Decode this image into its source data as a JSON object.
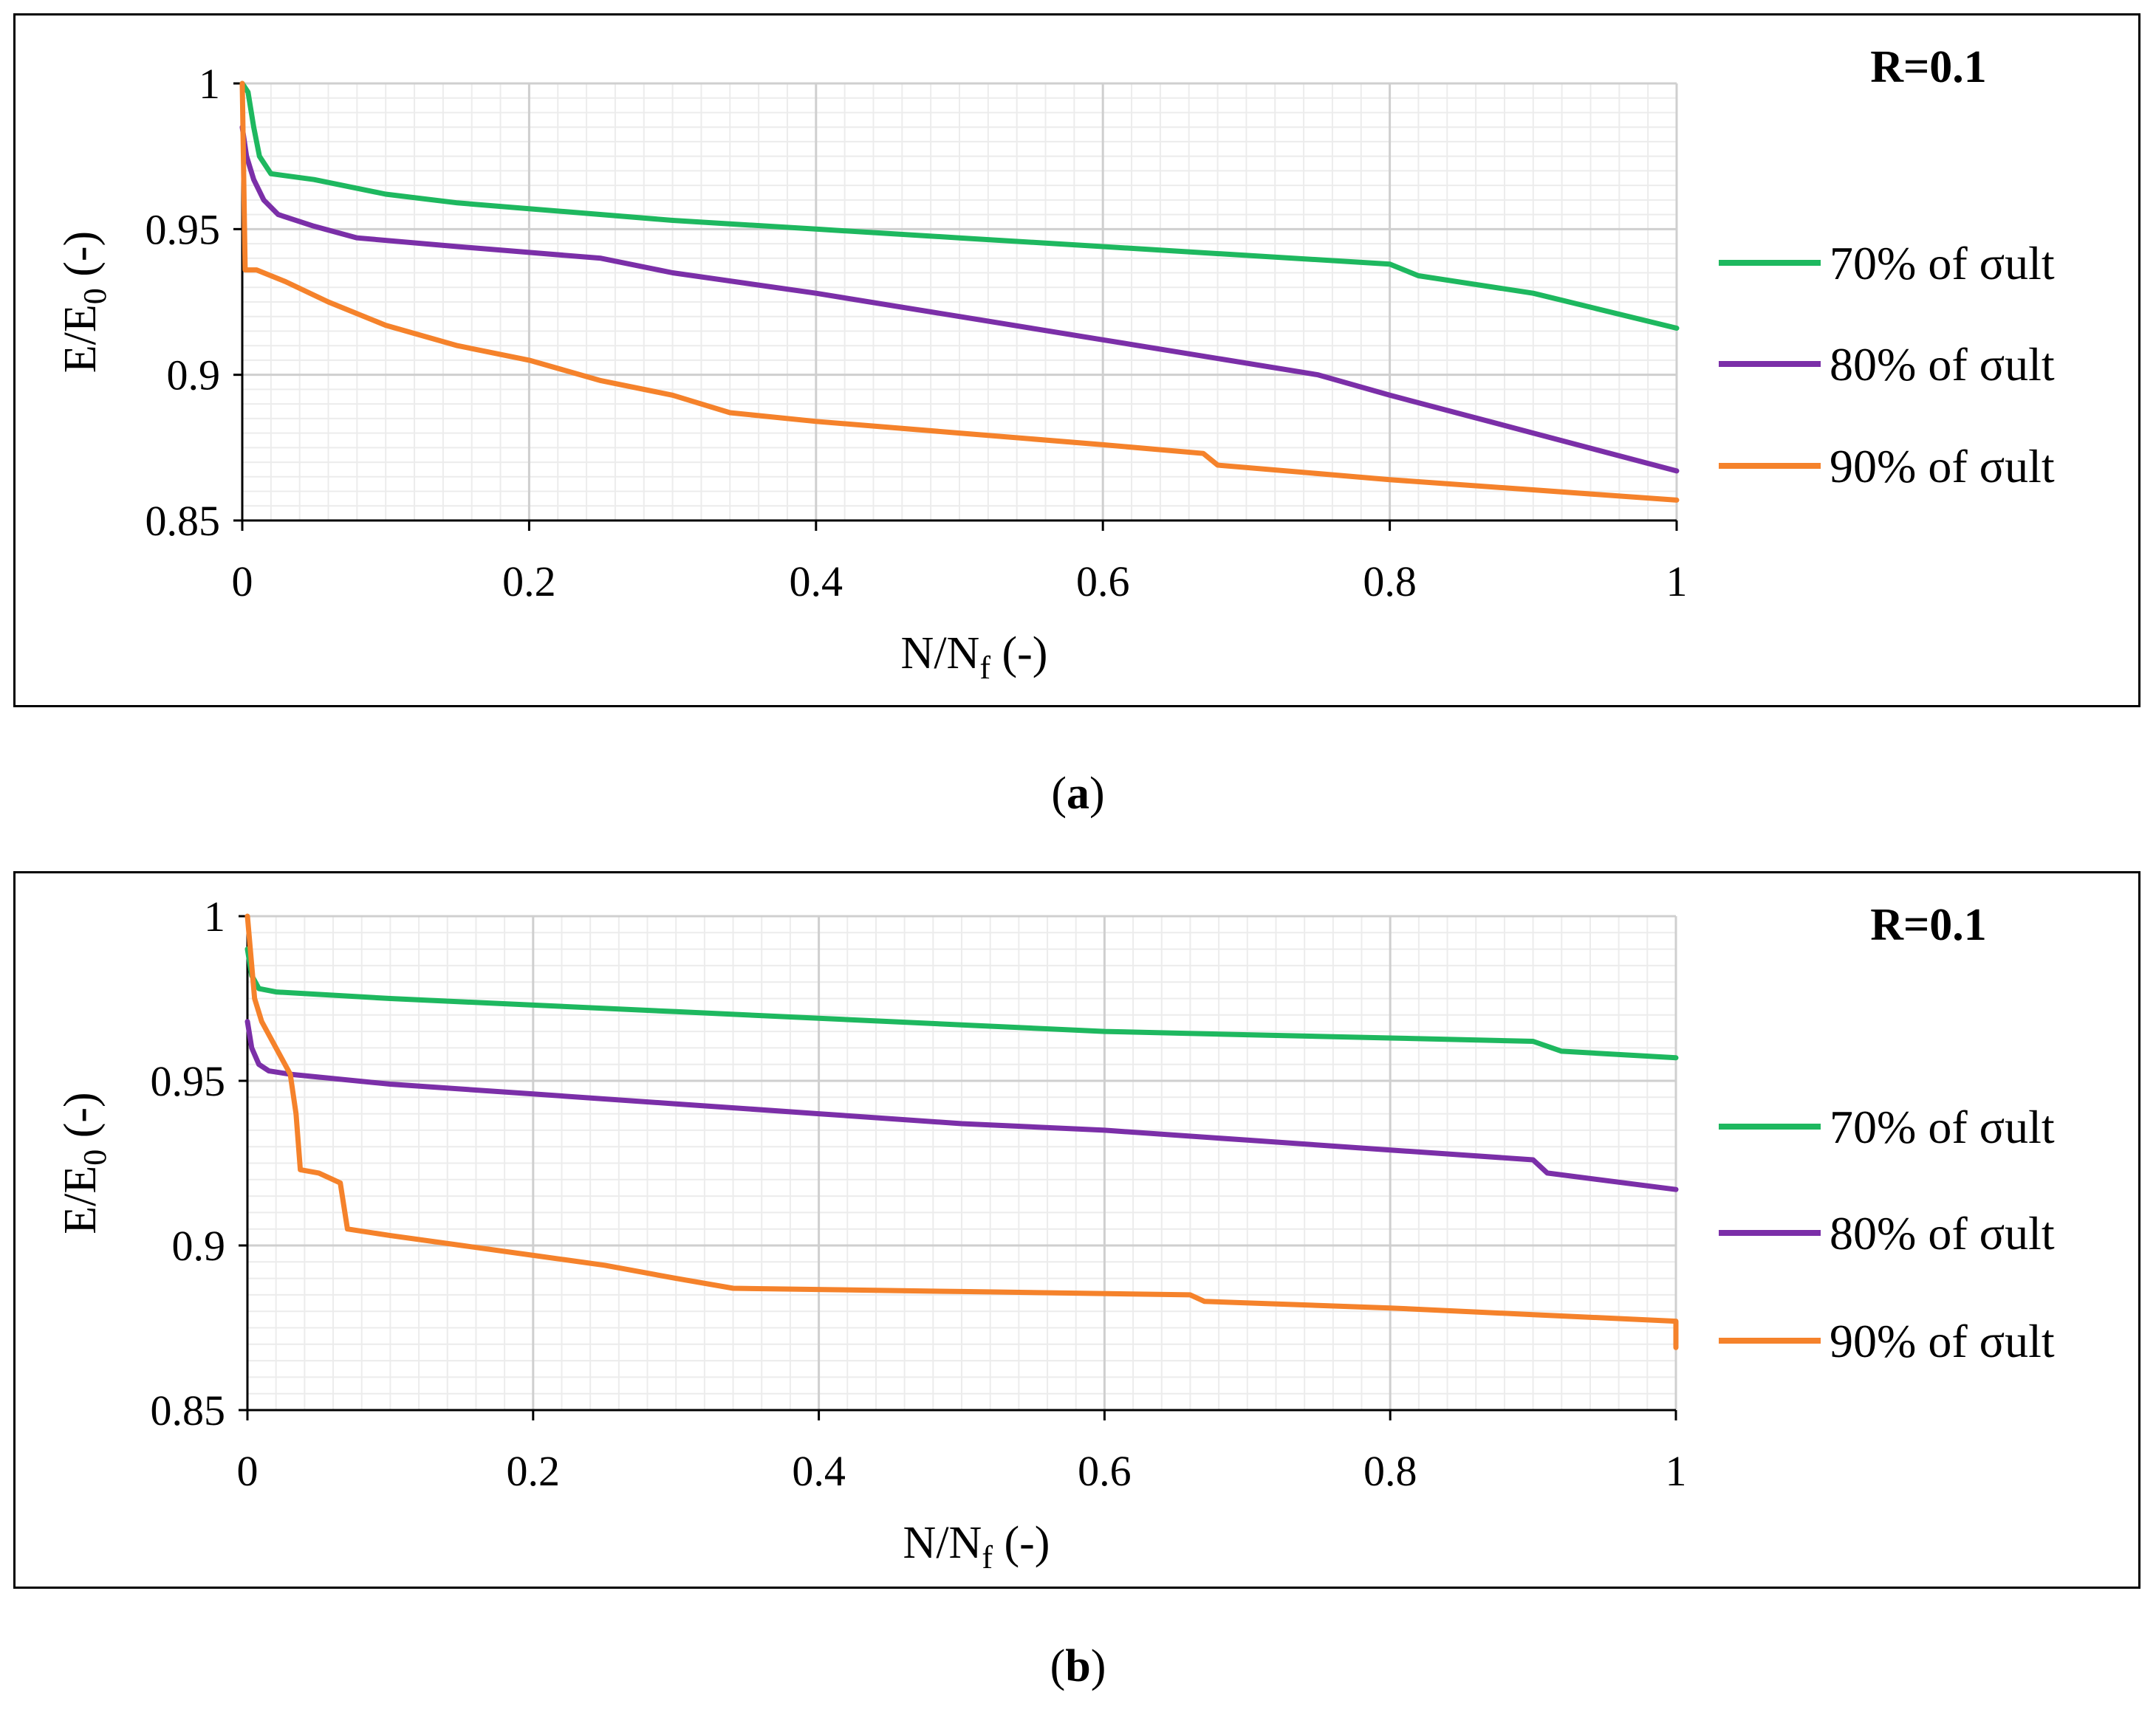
{
  "chart_data": [
    {
      "panel": "a",
      "type": "line",
      "caption": "a",
      "annotation": "R=0.1",
      "xlabel": "N/N",
      "xlabel_sub": "f",
      "xlabel_suffix": " (-)",
      "ylabel": "E/E",
      "ylabel_sub": "0",
      "ylabel_suffix": " (-)",
      "xlim": [
        0,
        1
      ],
      "ylim": [
        0.85,
        1
      ],
      "xticks": [
        "0",
        "0.2",
        "0.4",
        "0.6",
        "0.8",
        "1"
      ],
      "yticks": [
        "0.85",
        "0.9",
        "0.95",
        "1"
      ],
      "grid": true,
      "legend_position": "right",
      "series": [
        {
          "name": "70% of σult",
          "color": "#1eb85f",
          "x": [
            0,
            0.004,
            0.008,
            0.012,
            0.02,
            0.05,
            0.1,
            0.15,
            0.2,
            0.3,
            0.4,
            0.5,
            0.6,
            0.7,
            0.8,
            0.82,
            0.9,
            1.0
          ],
          "y": [
            1.0,
            0.997,
            0.985,
            0.975,
            0.969,
            0.967,
            0.962,
            0.959,
            0.957,
            0.953,
            0.95,
            0.947,
            0.944,
            0.941,
            0.938,
            0.934,
            0.928,
            0.916
          ]
        },
        {
          "name": "80% of σult",
          "color": "#7b2fa8",
          "x": [
            0,
            0.003,
            0.008,
            0.015,
            0.025,
            0.05,
            0.08,
            0.15,
            0.2,
            0.25,
            0.3,
            0.4,
            0.5,
            0.6,
            0.75,
            0.8,
            0.9,
            1.0
          ],
          "y": [
            0.985,
            0.975,
            0.967,
            0.96,
            0.955,
            0.951,
            0.947,
            0.944,
            0.942,
            0.94,
            0.935,
            0.928,
            0.92,
            0.912,
            0.9,
            0.893,
            0.88,
            0.867
          ]
        },
        {
          "name": "90% of σult",
          "color": "#f5822b",
          "x": [
            0,
            0.002,
            0.01,
            0.03,
            0.06,
            0.1,
            0.15,
            0.2,
            0.25,
            0.3,
            0.34,
            0.4,
            0.5,
            0.6,
            0.67,
            0.68,
            0.8,
            1.0
          ],
          "y": [
            1.0,
            0.936,
            0.936,
            0.932,
            0.925,
            0.917,
            0.91,
            0.905,
            0.898,
            0.893,
            0.887,
            0.884,
            0.88,
            0.876,
            0.873,
            0.869,
            0.864,
            0.857
          ]
        }
      ]
    },
    {
      "panel": "b",
      "type": "line",
      "caption": "b",
      "annotation": "R=0.1",
      "xlabel": "N/N",
      "xlabel_sub": "f",
      "xlabel_suffix": " (-)",
      "ylabel": "E/E",
      "ylabel_sub": "0",
      "ylabel_suffix": " (-)",
      "xlim": [
        0,
        1
      ],
      "ylim": [
        0.85,
        1
      ],
      "xticks": [
        "0",
        "0.2",
        "0.4",
        "0.6",
        "0.8",
        "1"
      ],
      "yticks": [
        "0.85",
        "0.9",
        "0.95",
        "1"
      ],
      "grid": true,
      "legend_position": "right",
      "series": [
        {
          "name": "70% of σult",
          "color": "#1eb85f",
          "x": [
            0,
            0.003,
            0.008,
            0.02,
            0.1,
            0.2,
            0.3,
            0.4,
            0.5,
            0.6,
            0.7,
            0.8,
            0.9,
            0.92,
            1.0
          ],
          "y": [
            0.99,
            0.982,
            0.978,
            0.977,
            0.975,
            0.973,
            0.971,
            0.969,
            0.967,
            0.965,
            0.964,
            0.963,
            0.962,
            0.959,
            0.957
          ]
        },
        {
          "name": "80% of σult",
          "color": "#7b2fa8",
          "x": [
            0,
            0.003,
            0.008,
            0.015,
            0.03,
            0.1,
            0.2,
            0.3,
            0.4,
            0.5,
            0.6,
            0.7,
            0.8,
            0.9,
            0.91,
            1.0
          ],
          "y": [
            0.968,
            0.96,
            0.955,
            0.953,
            0.952,
            0.949,
            0.946,
            0.943,
            0.94,
            0.937,
            0.935,
            0.932,
            0.929,
            0.926,
            0.922,
            0.917
          ]
        },
        {
          "name": "90% of σult",
          "color": "#f5822b",
          "x": [
            0,
            0.005,
            0.01,
            0.02,
            0.03,
            0.034,
            0.037,
            0.05,
            0.065,
            0.07,
            0.1,
            0.15,
            0.2,
            0.25,
            0.3,
            0.34,
            0.5,
            0.66,
            0.67,
            0.8,
            0.9,
            1.0,
            1.0
          ],
          "y": [
            1.0,
            0.975,
            0.968,
            0.96,
            0.952,
            0.94,
            0.923,
            0.922,
            0.919,
            0.905,
            0.903,
            0.9,
            0.897,
            0.894,
            0.89,
            0.887,
            0.886,
            0.885,
            0.883,
            0.881,
            0.879,
            0.877,
            0.869
          ]
        }
      ]
    }
  ]
}
